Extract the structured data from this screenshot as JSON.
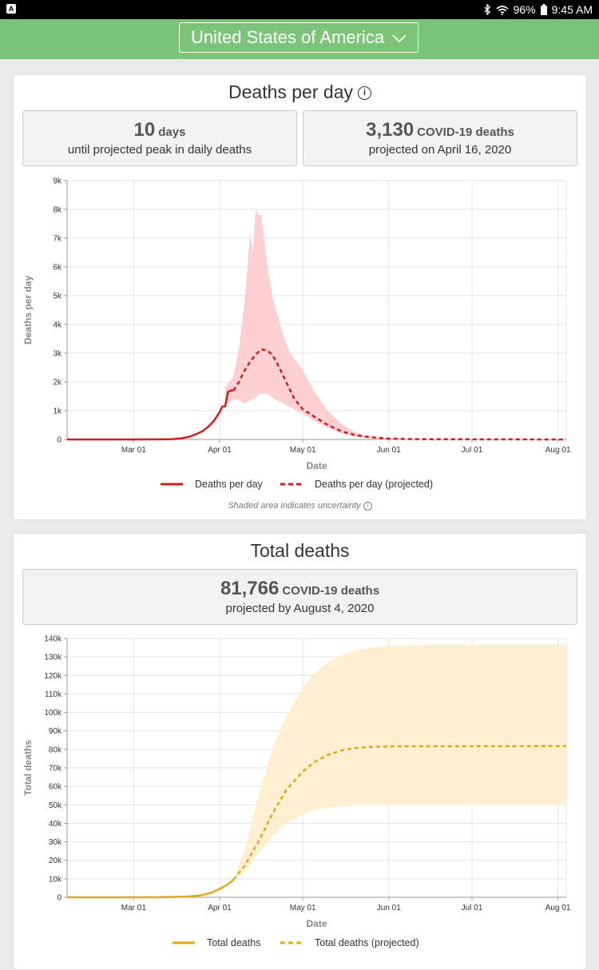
{
  "status_bar": {
    "battery": "96%",
    "time": "9:45 AM"
  },
  "header": {
    "country_selector": "United States of America"
  },
  "deaths_per_day_card": {
    "title": "Deaths per day",
    "peak_days_value": "10",
    "peak_days_unit": "days",
    "peak_days_caption": "until projected peak in daily deaths",
    "peak_deaths_value": "3,130",
    "peak_deaths_unit": "COVID-19 deaths",
    "peak_deaths_caption": "projected on April 16, 2020",
    "uncertainty_note": "Shaded area indicates uncertainty"
  },
  "total_deaths_card": {
    "title": "Total deaths",
    "total_value": "81,766",
    "total_unit": "COVID-19 deaths",
    "total_caption": "projected by August 4, 2020"
  },
  "chart_data": [
    {
      "type": "line",
      "xlabel": "Date",
      "ylabel": "Deaths per day",
      "x_ticks": [
        "Mar 01",
        "Apr 01",
        "May 01",
        "Jun 01",
        "Jul 01",
        "Aug 01"
      ],
      "y_ticks": [
        "0",
        "1k",
        "2k",
        "3k",
        "4k",
        "5k",
        "6k",
        "7k",
        "8k",
        "9k"
      ],
      "ylim": [
        0,
        9000
      ],
      "grid": true,
      "legend_position": "bottom",
      "colors": {
        "line": "#cc1f1f",
        "band": "#fcd0d0"
      },
      "series": [
        {
          "name": "Deaths per day",
          "style": "solid",
          "x": [
            "2020-02-06",
            "2020-02-20",
            "2020-03-01",
            "2020-03-10",
            "2020-03-15",
            "2020-03-18",
            "2020-03-21",
            "2020-03-24",
            "2020-03-26",
            "2020-03-28",
            "2020-03-30",
            "2020-04-01",
            "2020-04-02",
            "2020-04-03",
            "2020-04-04",
            "2020-04-05",
            "2020-04-06"
          ],
          "y": [
            0,
            0,
            0,
            5,
            10,
            40,
            90,
            200,
            300,
            450,
            650,
            950,
            1150,
            1150,
            1650,
            1700,
            1700
          ]
        },
        {
          "name": "Deaths per day (projected)",
          "style": "dashed",
          "x": [
            "2020-04-06",
            "2020-04-08",
            "2020-04-10",
            "2020-04-12",
            "2020-04-14",
            "2020-04-16",
            "2020-04-18",
            "2020-04-20",
            "2020-04-22",
            "2020-04-24",
            "2020-04-26",
            "2020-04-28",
            "2020-05-01",
            "2020-05-05",
            "2020-05-10",
            "2020-05-15",
            "2020-05-20",
            "2020-05-25",
            "2020-06-01",
            "2020-06-10",
            "2020-07-01",
            "2020-08-04"
          ],
          "y": [
            1700,
            2000,
            2400,
            2700,
            2950,
            3130,
            3100,
            2950,
            2600,
            2200,
            1800,
            1400,
            1050,
            800,
            500,
            280,
            150,
            80,
            30,
            10,
            5,
            0
          ]
        }
      ],
      "uncertainty_band": {
        "x": [
          "2020-04-03",
          "2020-04-06",
          "2020-04-08",
          "2020-04-10",
          "2020-04-12",
          "2020-04-13",
          "2020-04-14",
          "2020-04-15",
          "2020-04-16",
          "2020-04-18",
          "2020-04-20",
          "2020-04-22",
          "2020-04-24",
          "2020-04-26",
          "2020-04-28",
          "2020-05-01",
          "2020-05-05",
          "2020-05-10",
          "2020-05-15",
          "2020-05-20",
          "2020-05-25",
          "2020-06-01",
          "2020-06-10",
          "2020-07-01",
          "2020-08-04"
        ],
        "lower": [
          1200,
          1400,
          1350,
          1250,
          1350,
          1400,
          1450,
          1550,
          1600,
          1600,
          1450,
          1350,
          1250,
          1150,
          1050,
          900,
          650,
          400,
          200,
          90,
          40,
          10,
          5,
          0,
          0
        ],
        "upper": [
          1800,
          2200,
          3200,
          4800,
          7200,
          6500,
          8000,
          7800,
          7800,
          6200,
          5000,
          4300,
          3600,
          3100,
          2800,
          2400,
          1700,
          1000,
          550,
          250,
          120,
          50,
          20,
          5,
          0
        ]
      }
    },
    {
      "type": "line",
      "xlabel": "Date",
      "ylabel": "Total deaths",
      "x_ticks": [
        "Mar 01",
        "Apr 01",
        "May 01",
        "Jun 01",
        "Jul 01",
        "Aug 01"
      ],
      "y_ticks": [
        "0",
        "10k",
        "20k",
        "30k",
        "40k",
        "50k",
        "60k",
        "70k",
        "80k",
        "90k",
        "100k",
        "110k",
        "120k",
        "130k",
        "140k"
      ],
      "ylim": [
        0,
        140000
      ],
      "grid": true,
      "legend_position": "bottom",
      "colors": {
        "line": "#e0a81a",
        "band": "#fdefcf"
      },
      "series": [
        {
          "name": "Total deaths",
          "style": "solid",
          "x": [
            "2020-02-06",
            "2020-03-01",
            "2020-03-10",
            "2020-03-15",
            "2020-03-20",
            "2020-03-25",
            "2020-03-29",
            "2020-04-01",
            "2020-04-04",
            "2020-04-06"
          ],
          "y": [
            0,
            0,
            50,
            150,
            400,
            1000,
            2500,
            4500,
            7000,
            9500
          ]
        },
        {
          "name": "Total deaths (projected)",
          "style": "dashed",
          "x": [
            "2020-04-06",
            "2020-04-10",
            "2020-04-15",
            "2020-04-20",
            "2020-04-25",
            "2020-05-01",
            "2020-05-05",
            "2020-05-10",
            "2020-05-15",
            "2020-05-20",
            "2020-05-25",
            "2020-06-01",
            "2020-07-01",
            "2020-08-04"
          ],
          "y": [
            9500,
            17000,
            30000,
            45000,
            58000,
            68000,
            73000,
            77000,
            79500,
            80700,
            81300,
            81600,
            81700,
            81766
          ]
        }
      ],
      "uncertainty_band": {
        "x": [
          "2020-04-06",
          "2020-04-10",
          "2020-04-15",
          "2020-04-20",
          "2020-04-25",
          "2020-05-01",
          "2020-05-05",
          "2020-05-10",
          "2020-05-15",
          "2020-05-20",
          "2020-05-25",
          "2020-06-01",
          "2020-06-15",
          "2020-07-01",
          "2020-08-04"
        ],
        "lower": [
          9000,
          14000,
          24000,
          33000,
          40000,
          45000,
          47000,
          48500,
          49300,
          49700,
          49900,
          50000,
          50000,
          50000,
          50000
        ],
        "upper": [
          10000,
          25000,
          55000,
          80000,
          98000,
          113000,
          121000,
          127000,
          131000,
          133500,
          135000,
          136000,
          136500,
          136500,
          136500
        ]
      }
    }
  ]
}
